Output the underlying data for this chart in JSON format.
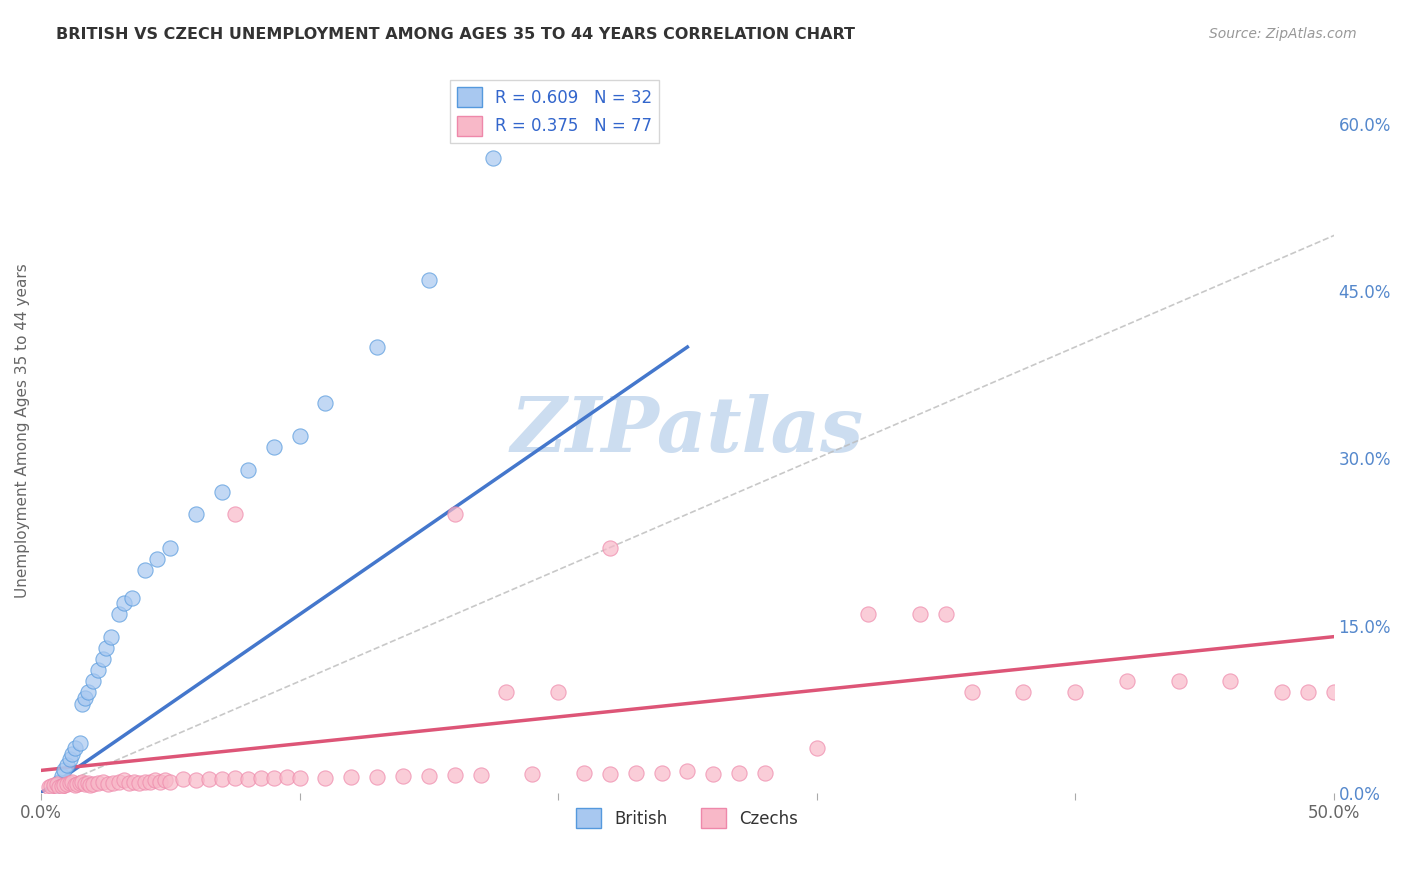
{
  "title": "BRITISH VS CZECH UNEMPLOYMENT AMONG AGES 35 TO 44 YEARS CORRELATION CHART",
  "source": "Source: ZipAtlas.com",
  "xlabel": "",
  "ylabel": "Unemployment Among Ages 35 to 44 years",
  "xlim": [
    0,
    0.5
  ],
  "ylim": [
    0,
    0.65
  ],
  "xtick_positions": [
    0.0,
    0.1,
    0.2,
    0.3,
    0.4,
    0.5
  ],
  "xtick_labels": [
    "0.0%",
    "",
    "",
    "",
    "",
    "50.0%"
  ],
  "yticks_right": [
    0.0,
    0.15,
    0.3,
    0.45,
    0.6
  ],
  "ytick_labels_right": [
    "0.0%",
    "15.0%",
    "30.0%",
    "45.0%",
    "60.0%"
  ],
  "british_color": "#a8c8f0",
  "british_edge_color": "#5599dd",
  "british_line_color": "#4477cc",
  "czech_color": "#f8b8c8",
  "czech_edge_color": "#ee88aa",
  "czech_line_color": "#dd5577",
  "british_R": 0.609,
  "british_N": 32,
  "czech_R": 0.375,
  "czech_N": 77,
  "watermark": "ZIPatlas",
  "watermark_color": "#ccddf0",
  "background_color": "#ffffff",
  "grid_color": "#cccccc",
  "british_x": [
    0.005,
    0.007,
    0.008,
    0.009,
    0.01,
    0.011,
    0.012,
    0.013,
    0.015,
    0.016,
    0.017,
    0.018,
    0.02,
    0.022,
    0.024,
    0.025,
    0.027,
    0.03,
    0.032,
    0.035,
    0.04,
    0.045,
    0.05,
    0.06,
    0.07,
    0.08,
    0.09,
    0.1,
    0.11,
    0.13,
    0.15,
    0.175
  ],
  "british_y": [
    0.005,
    0.01,
    0.015,
    0.02,
    0.025,
    0.03,
    0.035,
    0.04,
    0.045,
    0.08,
    0.085,
    0.09,
    0.1,
    0.11,
    0.12,
    0.13,
    0.14,
    0.16,
    0.17,
    0.175,
    0.2,
    0.21,
    0.22,
    0.25,
    0.27,
    0.29,
    0.31,
    0.32,
    0.35,
    0.4,
    0.46,
    0.57
  ],
  "czech_x": [
    0.003,
    0.004,
    0.005,
    0.006,
    0.007,
    0.008,
    0.009,
    0.01,
    0.011,
    0.012,
    0.013,
    0.014,
    0.015,
    0.016,
    0.017,
    0.018,
    0.019,
    0.02,
    0.022,
    0.024,
    0.026,
    0.028,
    0.03,
    0.032,
    0.034,
    0.036,
    0.038,
    0.04,
    0.042,
    0.044,
    0.046,
    0.048,
    0.05,
    0.055,
    0.06,
    0.065,
    0.07,
    0.075,
    0.08,
    0.085,
    0.09,
    0.095,
    0.1,
    0.11,
    0.12,
    0.13,
    0.14,
    0.15,
    0.16,
    0.17,
    0.18,
    0.19,
    0.2,
    0.21,
    0.22,
    0.23,
    0.24,
    0.25,
    0.26,
    0.27,
    0.28,
    0.3,
    0.32,
    0.34,
    0.35,
    0.36,
    0.38,
    0.4,
    0.42,
    0.44,
    0.46,
    0.48,
    0.49,
    0.5,
    0.22,
    0.16,
    0.075
  ],
  "czech_y": [
    0.005,
    0.006,
    0.007,
    0.008,
    0.005,
    0.006,
    0.007,
    0.008,
    0.009,
    0.01,
    0.007,
    0.008,
    0.009,
    0.01,
    0.008,
    0.009,
    0.007,
    0.008,
    0.009,
    0.01,
    0.008,
    0.009,
    0.01,
    0.011,
    0.009,
    0.01,
    0.009,
    0.01,
    0.01,
    0.011,
    0.01,
    0.011,
    0.01,
    0.012,
    0.011,
    0.012,
    0.012,
    0.013,
    0.012,
    0.013,
    0.013,
    0.014,
    0.013,
    0.013,
    0.014,
    0.014,
    0.015,
    0.015,
    0.016,
    0.016,
    0.09,
    0.017,
    0.09,
    0.018,
    0.017,
    0.018,
    0.018,
    0.019,
    0.017,
    0.018,
    0.018,
    0.04,
    0.16,
    0.16,
    0.16,
    0.09,
    0.09,
    0.09,
    0.1,
    0.1,
    0.1,
    0.09,
    0.09,
    0.09,
    0.22,
    0.25,
    0.25
  ]
}
